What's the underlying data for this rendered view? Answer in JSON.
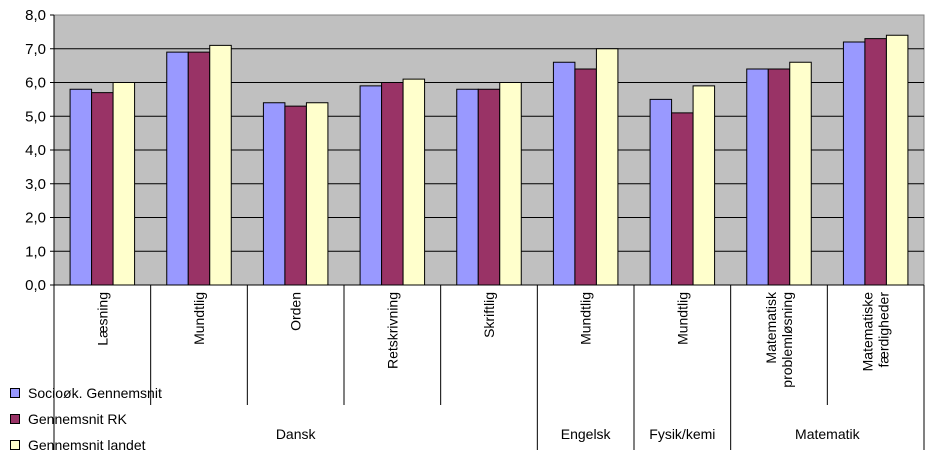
{
  "colors": {
    "plot_bg": "#c0c0c0",
    "frame": "#808080",
    "series": [
      "#9999ff",
      "#993366",
      "#ffffcc"
    ]
  },
  "chart_data": {
    "type": "bar",
    "ylim": [
      0,
      8
    ],
    "y_ticks": [
      "0,0",
      "1,0",
      "2,0",
      "3,0",
      "4,0",
      "5,0",
      "6,0",
      "7,0",
      "8,0"
    ],
    "grid": true,
    "legend_position": "bottom-left",
    "categories": [
      "Læsning",
      "Mundtlig",
      "Orden",
      "Retskrivning",
      "Skriftlig",
      "Mundtlig",
      "Mundtlig",
      "Matematisk problemløsning",
      "Matematiske færdigheder"
    ],
    "category_lines": [
      [
        "Læsning"
      ],
      [
        "Mundtlig"
      ],
      [
        "Orden"
      ],
      [
        "Retskrivning"
      ],
      [
        "Skriftlig"
      ],
      [
        "Mundtlig"
      ],
      [
        "Mundtlig"
      ],
      [
        "Matematisk",
        "problemløsning"
      ],
      [
        "Matematiske",
        "færdigheder"
      ]
    ],
    "groups": [
      {
        "label": "Dansk",
        "span": 5
      },
      {
        "label": "Engelsk",
        "span": 1
      },
      {
        "label": "Fysik/kemi",
        "span": 1
      },
      {
        "label": "Matematik",
        "span": 2
      }
    ],
    "series": [
      {
        "name": "Socioøk. Gennemsnit",
        "values": [
          5.8,
          6.9,
          5.4,
          5.9,
          5.8,
          6.6,
          5.5,
          6.4,
          7.2
        ]
      },
      {
        "name": "Gennemsnit RK",
        "values": [
          5.7,
          6.9,
          5.3,
          6.0,
          5.8,
          6.4,
          5.1,
          6.4,
          7.3
        ]
      },
      {
        "name": "Gennemsnit landet",
        "values": [
          6.0,
          7.1,
          5.4,
          6.1,
          6.0,
          7.0,
          5.9,
          6.6,
          7.4
        ]
      }
    ]
  }
}
